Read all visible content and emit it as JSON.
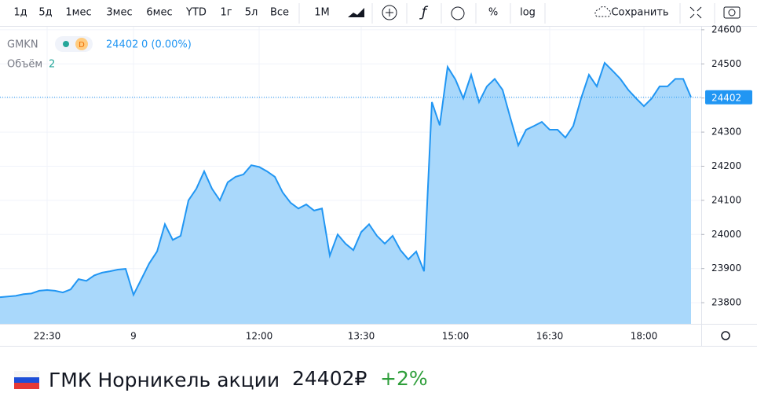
{
  "toolbar": {
    "ranges": [
      "1д",
      "5д",
      "1мес",
      "3мес",
      "6мес",
      "YTD",
      "1г",
      "5л",
      "Все"
    ],
    "interval": "1M",
    "percent": "%",
    "log": "log",
    "save": "Сохранить"
  },
  "legend": {
    "symbol": "GMKN",
    "badge": "D",
    "price": "24402",
    "change": "0 (0.00%)",
    "volume_label": "Объём",
    "volume": "2"
  },
  "chart_data": {
    "type": "area",
    "color": "#2196f3",
    "fill": "#a9d8fb",
    "categories": [
      null,
      null,
      null,
      null,
      null,
      null,
      "22:30",
      null,
      null,
      null,
      null,
      null,
      null,
      null,
      null,
      null,
      null,
      "9",
      null,
      null,
      null,
      null,
      null,
      null,
      null,
      null,
      null,
      null,
      null,
      null,
      null,
      null,
      null,
      "12:00",
      null,
      null,
      null,
      null,
      null,
      null,
      null,
      null,
      null,
      null,
      null,
      null,
      "13:30",
      null,
      null,
      null,
      null,
      null,
      null,
      null,
      null,
      null,
      null,
      null,
      "15:00",
      null,
      null,
      null,
      null,
      null,
      null,
      null,
      null,
      null,
      null,
      null,
      "16:30",
      null,
      null,
      null,
      null,
      null,
      null,
      null,
      null,
      null,
      null,
      null,
      "18:00",
      null,
      null,
      null,
      null,
      null,
      null
    ],
    "values": [
      23816,
      23818,
      23820,
      23825,
      23827,
      23835,
      23837,
      23835,
      23830,
      23839,
      23869,
      23864,
      23880,
      23888,
      23892,
      23897,
      23899,
      23823,
      23869,
      23915,
      23950,
      24030,
      23984,
      23996,
      24100,
      24134,
      24185,
      24134,
      24100,
      24153,
      24169,
      24176,
      24203,
      24198,
      24185,
      24169,
      24123,
      24093,
      24076,
      24088,
      24070,
      24076,
      23938,
      24000,
      23973,
      23954,
      24007,
      24030,
      23996,
      23973,
      23996,
      23954,
      23927,
      23950,
      23892,
      24388,
      24320,
      24491,
      24454,
      24399,
      24468,
      24388,
      24434,
      24456,
      24424,
      24341,
      24261,
      24307,
      24318,
      24330,
      24307,
      24307,
      24284,
      24318,
      24399,
      24468,
      24434,
      24503,
      24480,
      24456,
      24424,
      24399,
      24376,
      24399,
      24434,
      24434,
      24456,
      24456,
      24402
    ],
    "ylim": [
      23738,
      24602
    ],
    "yticks": [
      23800,
      23900,
      24000,
      24100,
      24200,
      24300,
      24400,
      24500,
      24600
    ],
    "last_price": 24402,
    "last_label": "24402",
    "grid": true
  },
  "footer": {
    "title": "ГМК Норникель акции",
    "price": "24402₽",
    "change": "+2%"
  }
}
